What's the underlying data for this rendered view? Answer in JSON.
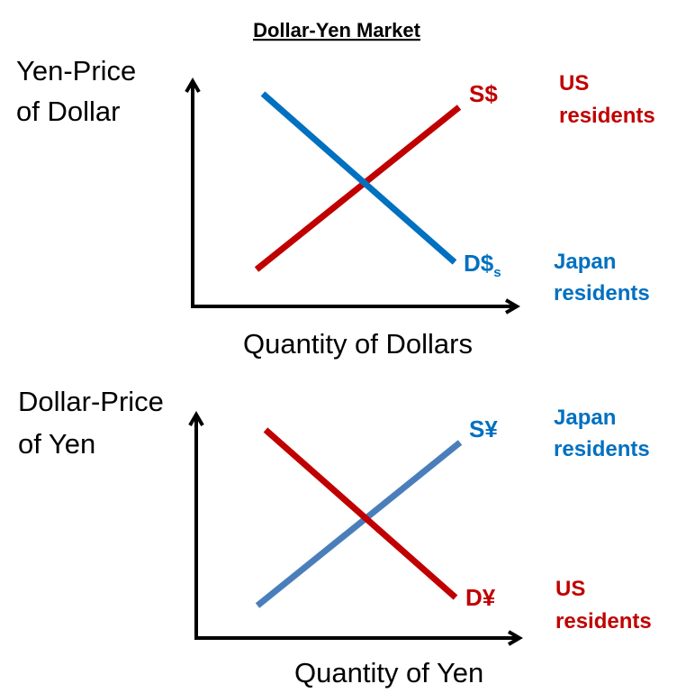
{
  "title": "Dollar-Yen Market",
  "colors": {
    "red": "#c00000",
    "blue": "#0070c0",
    "axis": "#000000"
  },
  "top_panel": {
    "y_label_line1": "Yen-Price",
    "y_label_line2": "of Dollar",
    "x_label": "Quantity of Dollars",
    "supply_label": "S$",
    "demand_label": "D$",
    "demand_subscript": "s",
    "supply_side_line1": "US",
    "supply_side_line2": "residents",
    "demand_side_line1": "Japan",
    "demand_side_line2": "residents"
  },
  "bottom_panel": {
    "y_label_line1": "Dollar-Price",
    "y_label_line2": "of Yen",
    "x_label": "Quantity of Yen",
    "supply_label": "S¥",
    "demand_label": "D¥",
    "supply_side_line1": "Japan",
    "supply_side_line2": "residents",
    "demand_side_line1": "US",
    "demand_side_line2": "residents"
  }
}
